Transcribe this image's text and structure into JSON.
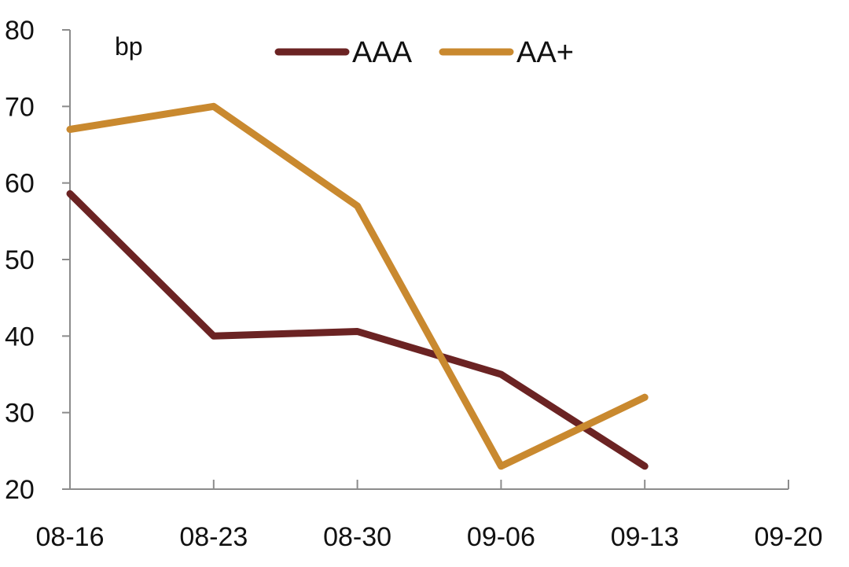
{
  "chart_data": {
    "type": "line",
    "unit_label": "bp",
    "categories": [
      "08-16",
      "08-23",
      "08-30",
      "09-06",
      "09-13",
      "09-20"
    ],
    "ylim": [
      20,
      80
    ],
    "yticks": [
      20,
      30,
      40,
      50,
      60,
      70,
      80
    ],
    "grid": false,
    "legend_position": "top-center",
    "series": [
      {
        "name": "AAA",
        "color": "#6b2323",
        "values": [
          58.6,
          40,
          40.6,
          35,
          23,
          null
        ]
      },
      {
        "name": "AA+",
        "color": "#c9892f",
        "values": [
          67,
          70,
          57,
          23,
          32,
          null
        ]
      }
    ]
  }
}
